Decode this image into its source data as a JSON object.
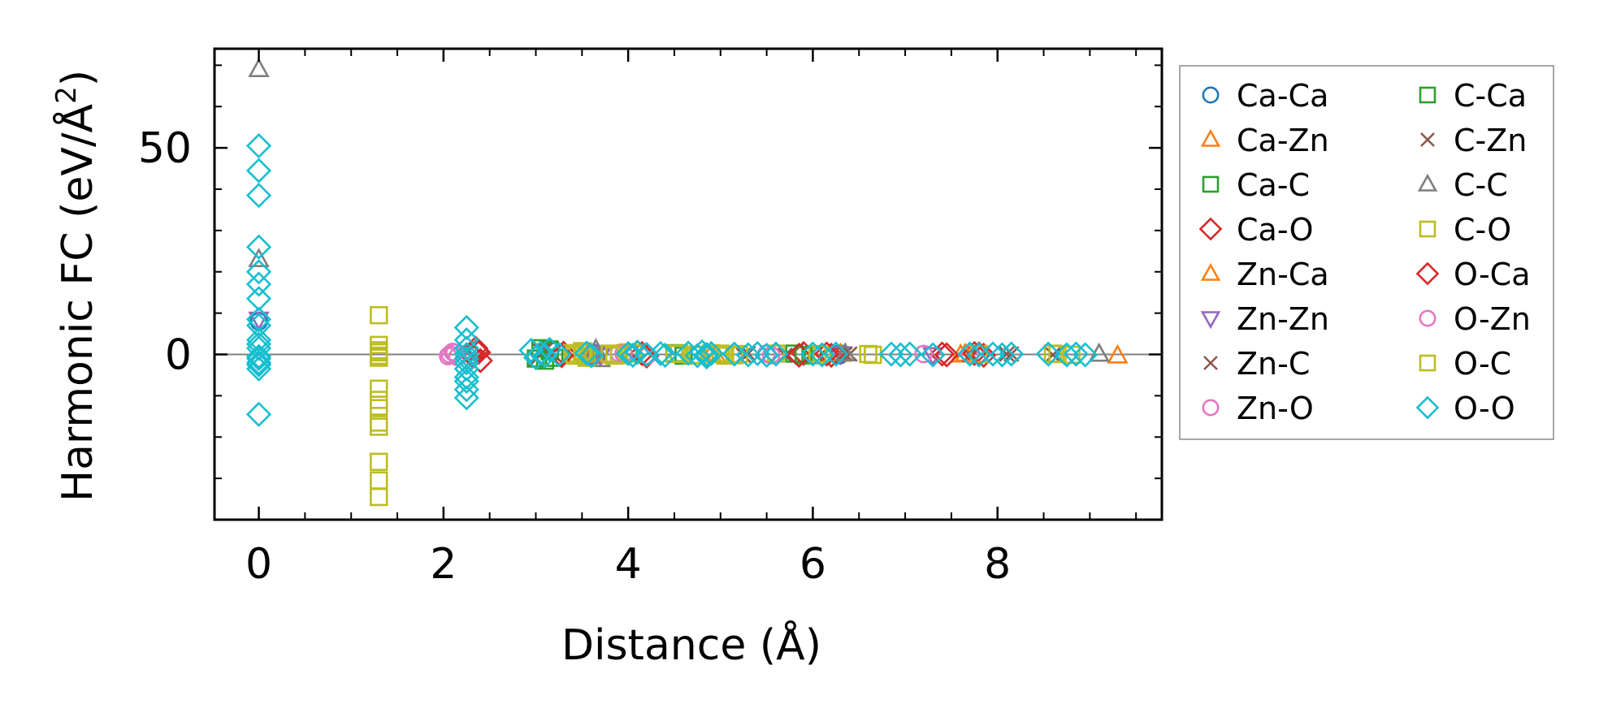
{
  "chart_data": {
    "type": "scatter",
    "title": "",
    "xlabel": "Distance (Å)",
    "ylabel": "Harmonic FC (eV/Å²)",
    "ylabel_main": "Harmonic FC (eV/Å",
    "ylabel_sup": "2",
    "ylabel_end": ")",
    "xlim": [
      -0.48,
      9.78
    ],
    "ylim": [
      -40,
      74
    ],
    "xticks": [
      0,
      2,
      4,
      6,
      8
    ],
    "xtick_labels": [
      "0",
      "2",
      "4",
      "6",
      "8"
    ],
    "xminor": [
      0.5,
      1,
      1.5,
      2.5,
      3,
      3.5,
      4.5,
      5,
      5.5,
      6.5,
      7,
      7.5,
      8.5,
      9,
      9.5
    ],
    "yticks": [
      0,
      50
    ],
    "ytick_labels": [
      "0",
      "50"
    ],
    "yminor": [
      -30,
      -20,
      -10,
      10,
      20,
      30,
      40,
      60,
      70
    ],
    "zero_line": 0,
    "legend_position": "outside-right",
    "legend_columns": 2,
    "series": [
      {
        "name": "Ca-Ca",
        "marker": "circle",
        "color": "#1f77b4",
        "x": [
          0,
          3.62,
          3.62,
          6.29,
          6.29
        ],
        "y": [
          8,
          0.4,
          -0.4,
          0.2,
          -0.2
        ]
      },
      {
        "name": "Ca-Zn",
        "marker": "triangle-up",
        "color": "#ff7f0e",
        "x": [
          3.6,
          4.95,
          6.3,
          7.6,
          9.3
        ],
        "y": [
          0.2,
          -0.2,
          0.1,
          -0.1,
          -0.3
        ]
      },
      {
        "name": "Ca-C",
        "marker": "square",
        "color": "#2ca02c",
        "x": [
          3.05,
          3.1,
          3.15,
          3.2,
          4.5,
          4.6,
          5.8,
          6.0
        ],
        "y": [
          1.5,
          -1.5,
          0.8,
          -0.8,
          0.3,
          -0.3,
          0.2,
          -0.2
        ]
      },
      {
        "name": "Ca-O",
        "marker": "diamond",
        "color": "#d62728",
        "x": [
          2.3,
          2.35,
          2.4,
          2.38,
          3.3,
          4.1,
          4.2,
          5.9,
          6.2,
          7.4,
          7.75,
          7.85
        ],
        "y": [
          0,
          1.5,
          -1.5,
          0.5,
          0.3,
          0.5,
          -0.4,
          0.2,
          -0.2,
          0.1,
          0.2,
          -0.2
        ]
      },
      {
        "name": "Zn-Ca",
        "marker": "triangle-up",
        "color": "#ff7f0e",
        "x": [
          3.65,
          4.9,
          7.65
        ],
        "y": [
          -0.3,
          0.2,
          0.1
        ]
      },
      {
        "name": "Zn-Zn",
        "marker": "triangle-down",
        "color": "#9467bd",
        "x": [
          0,
          3.65,
          3.7,
          6.3,
          7.3
        ],
        "y": [
          8.5,
          0.3,
          -0.3,
          0.1,
          -0.1
        ]
      },
      {
        "name": "Zn-C",
        "marker": "x",
        "color": "#8c564b",
        "x": [
          3.0,
          3.1,
          5.3,
          5.7,
          6.35,
          7.7,
          8.1,
          8.6
        ],
        "y": [
          -1.2,
          1.0,
          0.2,
          -0.2,
          0.1,
          -0.1,
          0.1,
          -0.1
        ]
      },
      {
        "name": "Zn-O",
        "marker": "circle",
        "color": "#e377c2",
        "x": [
          2.07,
          2.1,
          2.15,
          3.9,
          4.2,
          5.5,
          7.7
        ],
        "y": [
          0,
          0.6,
          -0.6,
          0.3,
          -0.3,
          0.2,
          0.1
        ]
      },
      {
        "name": "C-Ca",
        "marker": "square",
        "color": "#2ca02c",
        "x": [
          3.0,
          3.15,
          4.55,
          5.9
        ],
        "y": [
          -1.0,
          1.2,
          0.2,
          -0.2
        ]
      },
      {
        "name": "C-Zn",
        "marker": "x",
        "color": "#8c564b",
        "x": [
          3.05,
          5.25,
          6.4,
          8.15
        ],
        "y": [
          0.8,
          -0.2,
          0.1,
          0.1
        ]
      },
      {
        "name": "C-C",
        "marker": "triangle-up",
        "color": "#7f7f7f",
        "x": [
          0,
          0,
          3.65,
          3.7,
          6.35,
          9.1
        ],
        "y": [
          69,
          23,
          1.2,
          -1.2,
          0.2,
          0.1
        ]
      },
      {
        "name": "C-O",
        "marker": "square",
        "color": "#bcbd22",
        "x": [
          1.3,
          1.3,
          1.3,
          1.3,
          1.3,
          1.3,
          1.3,
          1.3,
          1.3,
          1.3,
          1.3,
          1.3,
          1.3,
          3.4,
          3.45,
          3.5,
          3.55,
          3.8,
          3.9,
          4.0,
          4.5,
          4.7,
          4.9,
          5.05,
          5.2,
          5.6,
          6.1,
          6.6,
          7.8,
          8.6,
          8.8
        ],
        "y": [
          9.5,
          2.3,
          1.0,
          -0.3,
          -0.8,
          -8.3,
          -11,
          -13,
          -16.5,
          -17.5,
          -26,
          -30.5,
          -34.5,
          0.3,
          -0.3,
          0.8,
          -0.8,
          0.2,
          -0.2,
          0.5,
          0.2,
          -0.2,
          0.3,
          -0.3,
          0.1,
          0.2,
          -0.1,
          0.1,
          0.1,
          0.2,
          -0.1
        ]
      },
      {
        "name": "O-Ca",
        "marker": "diamond",
        "color": "#d62728",
        "x": [
          2.32,
          2.36,
          3.28,
          4.15,
          5.85,
          6.15,
          7.45,
          7.8
        ],
        "y": [
          -0.5,
          0.8,
          -0.3,
          0.2,
          -0.2,
          0.1,
          -0.1,
          0.1
        ]
      },
      {
        "name": "O-Zn",
        "marker": "circle",
        "color": "#e377c2",
        "x": [
          2.05,
          2.12,
          3.95,
          5.55,
          7.2
        ],
        "y": [
          -0.4,
          0.4,
          0.2,
          -0.2,
          0.1
        ]
      },
      {
        "name": "O-C",
        "marker": "square",
        "color": "#bcbd22",
        "x": [
          1.3,
          1.3,
          3.42,
          3.52,
          3.85,
          4.05,
          4.55,
          4.75,
          5.0,
          5.15,
          6.05,
          6.65,
          8.65
        ],
        "y": [
          0.5,
          -0.5,
          -0.2,
          0.4,
          -0.3,
          0.2,
          0.1,
          -0.1,
          0.2,
          -0.2,
          0.1,
          -0.1,
          0.1
        ]
      },
      {
        "name": "O-O",
        "marker": "diamond",
        "color": "#17becf",
        "x": [
          0,
          0,
          0,
          0,
          0,
          0,
          0,
          0,
          0,
          0,
          0,
          0,
          0,
          0,
          0,
          0,
          0,
          0,
          2.25,
          2.25,
          2.25,
          2.25,
          2.25,
          2.25,
          2.25,
          2.25,
          2.25,
          2.25,
          2.25,
          2.95,
          3.0,
          3.05,
          3.1,
          3.15,
          3.25,
          3.55,
          3.6,
          4.0,
          4.05,
          4.1,
          4.2,
          4.35,
          4.4,
          4.65,
          4.75,
          4.8,
          4.85,
          4.85,
          4.9,
          5.15,
          5.3,
          5.4,
          5.5,
          5.6,
          6.0,
          6.1,
          6.25,
          6.85,
          6.95,
          7.05,
          7.3,
          7.7,
          7.8,
          7.95,
          8.05,
          8.15,
          8.55,
          8.75,
          8.85,
          8.95
        ],
        "y": [
          50.5,
          44.5,
          38.5,
          26,
          20,
          17,
          13.5,
          8.5,
          7,
          3.5,
          2.5,
          1.5,
          -0.5,
          -1,
          -2,
          -2.5,
          -3.5,
          -14.5,
          6.5,
          3.5,
          1.5,
          0,
          -1,
          -2,
          -3.5,
          -5.5,
          -6.5,
          -8.5,
          -10.5,
          1.0,
          -0.8,
          0.3,
          -0.3,
          1.2,
          0,
          0.3,
          -0.3,
          0.2,
          -0.2,
          0.5,
          0,
          0.2,
          -0.2,
          0.3,
          -0.3,
          0.6,
          0,
          -0.6,
          0.2,
          0.1,
          -0.1,
          0.2,
          -0.2,
          0.1,
          0.1,
          -0.1,
          0.1,
          0.1,
          -0.1,
          0.1,
          -0.1,
          0.1,
          -0.1,
          0.1,
          -0.1,
          0.1,
          0.1,
          -0.1,
          0.1,
          -0.1
        ]
      }
    ]
  }
}
